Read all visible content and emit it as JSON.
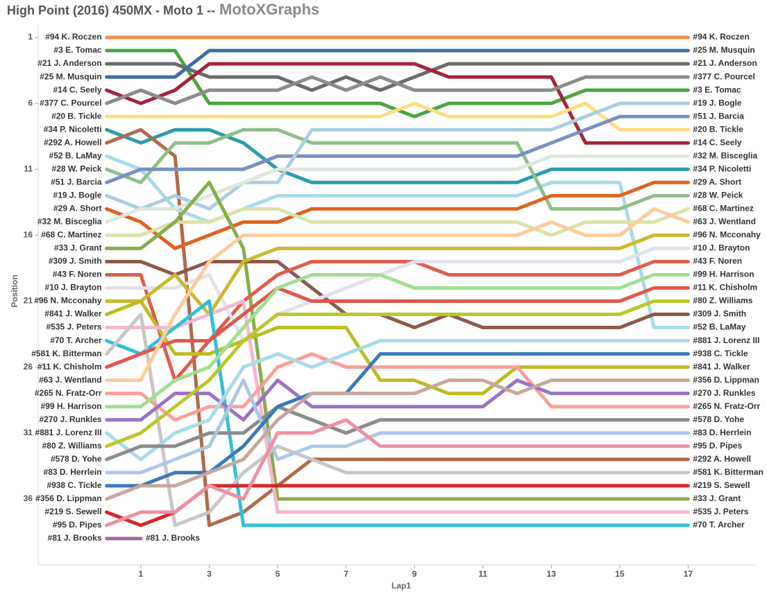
{
  "chart_data": {
    "type": "line",
    "title": "High Point (2016) 450MX - Moto 1 --",
    "brand": "MotoXGraphs",
    "x_label": "Lap1",
    "y_label": "Position",
    "x": [
      0,
      1,
      2,
      3,
      4,
      5,
      6,
      7,
      8,
      9,
      10,
      11,
      12,
      13,
      14,
      15,
      16,
      17
    ],
    "xlim": [
      -2,
      19
    ],
    "xticks": [
      1,
      3,
      5,
      7,
      9,
      11,
      13,
      15,
      17
    ],
    "ylim": [
      0,
      41
    ],
    "yticks": [
      1,
      6,
      11,
      16,
      21,
      26,
      31,
      36
    ],
    "y_reversed": true,
    "series": [
      {
        "name": "#94 K. Roczen",
        "color": "#f28e4c",
        "values": [
          1,
          1,
          1,
          1,
          1,
          1,
          1,
          1,
          1,
          1,
          1,
          1,
          1,
          1,
          1,
          1,
          1,
          1
        ]
      },
      {
        "name": "#3 E. Tomac",
        "color": "#4aa540",
        "values": [
          2,
          2,
          2,
          6,
          6,
          6,
          6,
          6,
          6,
          7,
          6,
          6,
          6,
          6,
          5,
          5,
          5,
          5
        ]
      },
      {
        "name": "#21 J. Anderson",
        "color": "#6b6b6b",
        "values": [
          3,
          3,
          3,
          4,
          4,
          4,
          5,
          4,
          5,
          4,
          3,
          3,
          3,
          3,
          3,
          3,
          3,
          3
        ]
      },
      {
        "name": "#25 M. Musquin",
        "color": "#3b6fa5",
        "values": [
          4,
          4,
          4,
          2,
          2,
          2,
          2,
          2,
          2,
          2,
          2,
          2,
          2,
          2,
          2,
          2,
          2,
          2
        ]
      },
      {
        "name": "#14 C. Seely",
        "color": "#a3243d",
        "values": [
          5,
          6,
          5,
          3,
          3,
          3,
          3,
          3,
          3,
          3,
          4,
          4,
          4,
          4,
          9,
          9,
          9,
          9
        ]
      },
      {
        "name": "#377 C. Pourcel",
        "color": "#8c8c8c",
        "values": [
          6,
          5,
          6,
          5,
          5,
          5,
          4,
          5,
          4,
          5,
          5,
          5,
          5,
          5,
          4,
          4,
          4,
          4
        ]
      },
      {
        "name": "#20 B. Tickle",
        "color": "#ffdc85",
        "values": [
          7,
          7,
          7,
          7,
          7,
          7,
          7,
          7,
          7,
          6,
          7,
          7,
          7,
          7,
          6,
          8,
          8,
          8
        ]
      },
      {
        "name": "#34 P. Nicoletti",
        "color": "#2b9cab",
        "values": [
          8,
          9,
          8,
          8,
          9,
          11,
          12,
          12,
          12,
          12,
          12,
          12,
          12,
          11,
          11,
          11,
          11,
          11
        ]
      },
      {
        "name": "#292 A. Howell",
        "color": "#b06a4a",
        "values": [
          9,
          8,
          10,
          38,
          37,
          35,
          33,
          33,
          33,
          33,
          33,
          33,
          33,
          33,
          33,
          33,
          33,
          33
        ]
      },
      {
        "name": "#52 B. LaMay",
        "color": "#a8dbe8",
        "values": [
          10,
          11,
          14,
          15,
          14,
          13,
          13,
          13,
          13,
          13,
          13,
          13,
          13,
          12,
          12,
          12,
          23,
          23
        ]
      },
      {
        "name": "#28 W. Peick",
        "color": "#8fbf8a",
        "values": [
          11,
          12,
          9,
          9,
          8,
          8,
          9,
          9,
          9,
          9,
          9,
          9,
          9,
          14,
          14,
          14,
          13,
          13
        ]
      },
      {
        "name": "#51 J. Barcia",
        "color": "#7a8fc3",
        "values": [
          12,
          11,
          11,
          11,
          11,
          10,
          10,
          10,
          10,
          10,
          10,
          10,
          10,
          9,
          8,
          7,
          7,
          7
        ]
      },
      {
        "name": "#19 J. Bogle",
        "color": "#a9cfe0",
        "values": [
          13,
          14,
          13,
          14,
          12,
          12,
          8,
          8,
          8,
          8,
          8,
          8,
          8,
          8,
          7,
          6,
          6,
          6
        ]
      },
      {
        "name": "#29 A. Short",
        "color": "#e0621f",
        "values": [
          14,
          15,
          17,
          16,
          15,
          15,
          14,
          14,
          14,
          14,
          14,
          14,
          14,
          13,
          13,
          13,
          12,
          12
        ]
      },
      {
        "name": "#32 M. Bisceglia",
        "color": "#dde8dd",
        "values": [
          15,
          14,
          14,
          13,
          12,
          11,
          11,
          11,
          11,
          11,
          11,
          11,
          11,
          10,
          10,
          10,
          10,
          10
        ]
      },
      {
        "name": "#68 C. Martinez",
        "color": "#dbe3a6",
        "values": [
          16,
          16,
          15,
          15,
          14,
          14,
          15,
          15,
          15,
          15,
          15,
          15,
          15,
          16,
          15,
          15,
          15,
          14
        ]
      },
      {
        "name": "#33 J. Grant",
        "color": "#88ad4a",
        "values": [
          17,
          17,
          15,
          12,
          17,
          36,
          36,
          36,
          36,
          36,
          36,
          36,
          36,
          36,
          36,
          36,
          36,
          36
        ]
      },
      {
        "name": "#309 J. Smith",
        "color": "#8c5a4c",
        "values": [
          18,
          18,
          19,
          18,
          18,
          18,
          20,
          22,
          22,
          23,
          22,
          23,
          23,
          23,
          23,
          23,
          22,
          22
        ]
      },
      {
        "name": "#43 F. Noren",
        "color": "#e05c4a",
        "values": [
          19,
          19,
          27,
          24,
          21,
          19,
          18,
          18,
          18,
          18,
          19,
          19,
          19,
          19,
          19,
          19,
          18,
          18
        ]
      },
      {
        "name": "#10 J. Brayton",
        "color": "#e2e2ee",
        "values": [
          20,
          20,
          20,
          19,
          24,
          22,
          21,
          20,
          19,
          18,
          18,
          18,
          18,
          18,
          18,
          18,
          17,
          17
        ]
      },
      {
        "name": "#96 N. Mcconahy",
        "color": "#cdb82e",
        "values": [
          21,
          21,
          19,
          22,
          18,
          17,
          17,
          17,
          17,
          17,
          17,
          17,
          17,
          17,
          17,
          17,
          16,
          16
        ]
      },
      {
        "name": "#841 J. Walker",
        "color": "#bcbd22",
        "values": [
          22,
          21,
          25,
          25,
          24,
          23,
          23,
          23,
          27,
          27,
          28,
          28,
          26,
          26,
          26,
          26,
          26,
          26
        ]
      },
      {
        "name": "#535 J. Peters",
        "color": "#f7b6d2",
        "values": [
          23,
          23,
          23,
          22,
          21,
          37,
          37,
          37,
          37,
          37,
          37,
          37,
          37,
          37,
          37,
          37,
          37,
          37
        ]
      },
      {
        "name": "#70 T. Archer",
        "color": "#31c0d6",
        "values": [
          24,
          25,
          23,
          21,
          38,
          38,
          38,
          38,
          38,
          38,
          38,
          38,
          38,
          38,
          38,
          38,
          38,
          38
        ]
      },
      {
        "name": "#581 K. Bitterman",
        "color": "#c7c7c7",
        "values": [
          25,
          22,
          38,
          37,
          34,
          32,
          33,
          34,
          34,
          34,
          34,
          34,
          34,
          34,
          34,
          34,
          34,
          34
        ]
      },
      {
        "name": "#11 K. Chisholm",
        "color": "#e0584a",
        "values": [
          26,
          25,
          24,
          24,
          22,
          20,
          21,
          21,
          21,
          21,
          21,
          21,
          21,
          21,
          21,
          21,
          20,
          20
        ]
      },
      {
        "name": "#63 J. Wentland",
        "color": "#ffcc99",
        "values": [
          27,
          27,
          22,
          18,
          16,
          16,
          16,
          16,
          16,
          16,
          16,
          16,
          16,
          15,
          16,
          16,
          14,
          15
        ]
      },
      {
        "name": "#265 N. Fratz-Orr",
        "color": "#ff9e9a",
        "values": [
          28,
          28,
          30,
          29,
          29,
          26,
          25,
          26,
          26,
          26,
          26,
          26,
          26,
          29,
          29,
          29,
          29,
          29
        ]
      },
      {
        "name": "#99 H. Harrison",
        "color": "#9fe091",
        "values": [
          29,
          29,
          27,
          26,
          23,
          20,
          19,
          19,
          19,
          20,
          20,
          20,
          20,
          20,
          20,
          20,
          19,
          19
        ]
      },
      {
        "name": "#270 J. Runkles",
        "color": "#9a73c4",
        "values": [
          30,
          30,
          28,
          28,
          30,
          27,
          29,
          29,
          29,
          29,
          29,
          29,
          27,
          28,
          28,
          28,
          28,
          28
        ]
      },
      {
        "name": "#881 J. Lorenz III",
        "color": "#a8dce8",
        "values": [
          31,
          33,
          31,
          30,
          26,
          25,
          26,
          25,
          24,
          24,
          24,
          24,
          24,
          24,
          24,
          24,
          24,
          24
        ]
      },
      {
        "name": "#80 Z. Williams",
        "color": "#bcc82a",
        "values": [
          32,
          31,
          29,
          27,
          24,
          22,
          22,
          22,
          22,
          22,
          22,
          22,
          22,
          22,
          22,
          22,
          21,
          21
        ]
      },
      {
        "name": "#578 D. Yohe",
        "color": "#8c8c8c",
        "values": [
          33,
          32,
          32,
          31,
          31,
          29,
          30,
          31,
          30,
          30,
          30,
          30,
          30,
          30,
          30,
          30,
          30,
          30
        ]
      },
      {
        "name": "#83 D. Herrlein",
        "color": "#aec7e8",
        "values": [
          34,
          34,
          33,
          32,
          27,
          33,
          32,
          32,
          31,
          31,
          31,
          31,
          31,
          31,
          31,
          31,
          31,
          31
        ]
      },
      {
        "name": "#938 C. Tickle",
        "color": "#3a7ab5",
        "values": [
          35,
          35,
          34,
          34,
          32,
          29,
          28,
          28,
          25,
          25,
          25,
          25,
          25,
          25,
          25,
          25,
          25,
          25
        ]
      },
      {
        "name": "#356 D. Lippman",
        "color": "#c9a79e",
        "values": [
          36,
          35,
          35,
          34,
          33,
          30,
          28,
          28,
          28,
          28,
          27,
          27,
          28,
          27,
          27,
          27,
          27,
          27
        ]
      },
      {
        "name": "#219 S. Sewell",
        "color": "#d62728",
        "values": [
          37,
          38,
          37,
          35,
          35,
          35,
          35,
          35,
          35,
          35,
          35,
          35,
          35,
          35,
          35,
          35,
          35,
          35
        ]
      },
      {
        "name": "#95 D. Pipes",
        "color": "#f08fa5",
        "values": [
          38,
          37,
          37,
          35,
          36,
          31,
          31,
          30,
          32,
          32,
          32,
          32,
          32,
          32,
          32,
          32,
          32,
          32
        ]
      },
      {
        "name": "#81 J. Brooks",
        "color": "#a06ea0",
        "values": [
          39,
          39,
          null,
          null,
          null,
          null,
          null,
          null,
          null,
          null,
          null,
          null,
          null,
          null,
          null,
          null,
          null,
          null
        ]
      }
    ]
  }
}
